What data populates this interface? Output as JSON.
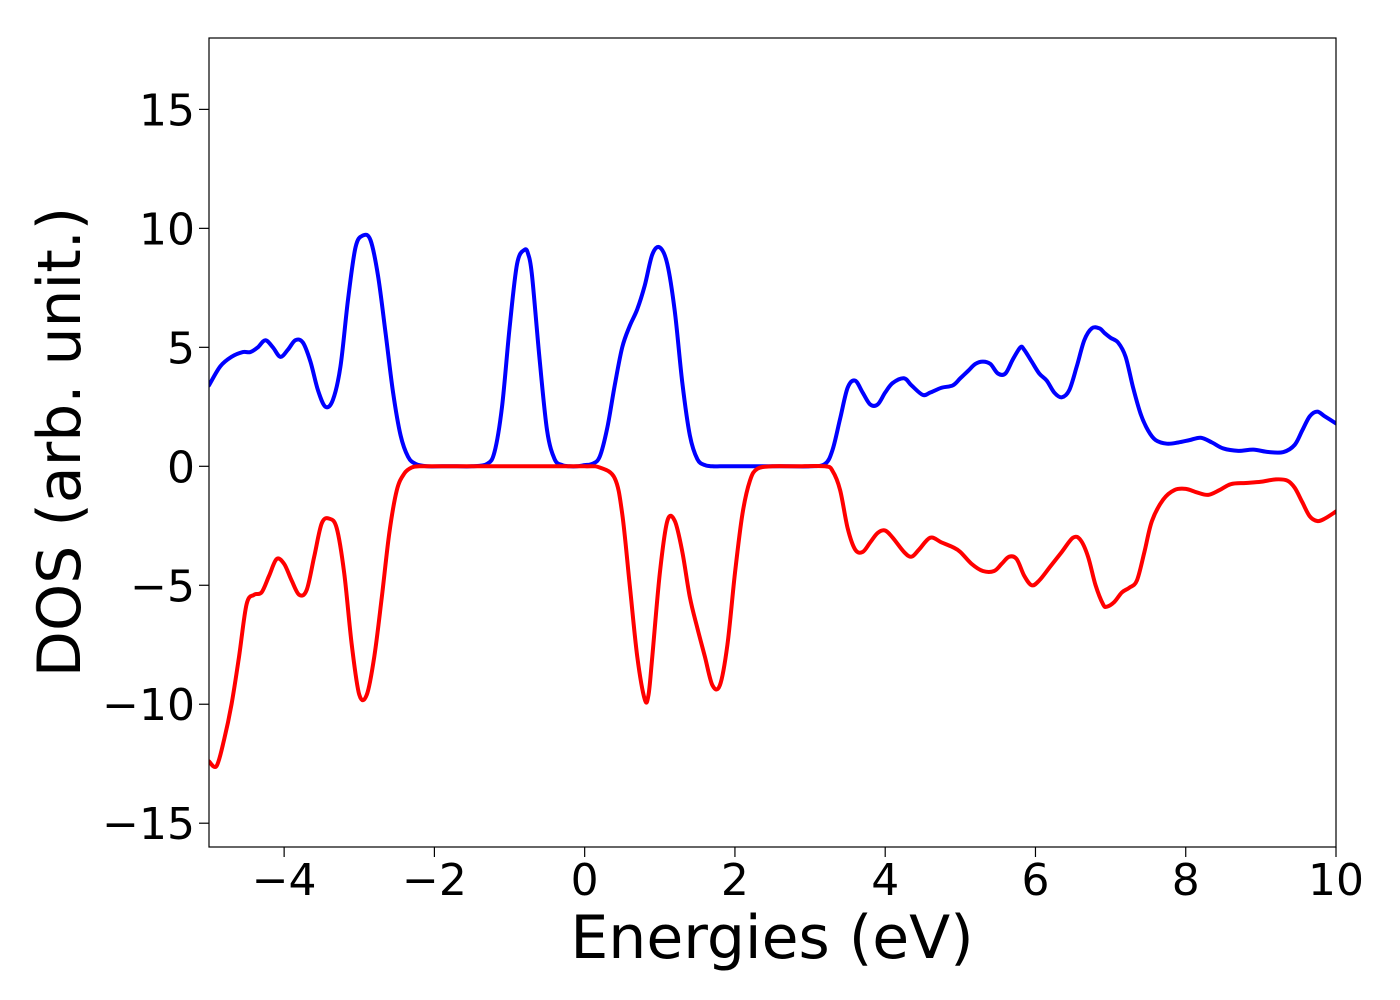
{
  "chart_data": {
    "type": "line",
    "xlabel": "Energies (eV)",
    "ylabel": "DOS (arb. unit.)",
    "xlim": [
      -5,
      10
    ],
    "ylim": [
      -16,
      18
    ],
    "xticks": [
      -4,
      -2,
      0,
      2,
      4,
      6,
      8,
      10
    ],
    "xtick_labels": [
      "−4",
      "−2",
      "0",
      "2",
      "4",
      "6",
      "8",
      "10"
    ],
    "yticks": [
      -15,
      -10,
      -5,
      0,
      5,
      10,
      15
    ],
    "ytick_labels": [
      "−15",
      "−10",
      "−5",
      "0",
      "5",
      "10",
      "15"
    ],
    "grid": false,
    "series": [
      {
        "color": "#0000ff",
        "x": [
          -5.0,
          -4.85,
          -4.7,
          -4.55,
          -4.45,
          -4.35,
          -4.25,
          -4.15,
          -4.05,
          -3.95,
          -3.85,
          -3.75,
          -3.65,
          -3.55,
          -3.45,
          -3.35,
          -3.25,
          -3.15,
          -3.05,
          -2.95,
          -2.85,
          -2.75,
          -2.65,
          -2.55,
          -2.45,
          -2.35,
          -2.25,
          -2.1,
          -1.9,
          -1.7,
          -1.5,
          -1.3,
          -1.2,
          -1.1,
          -1.0,
          -0.9,
          -0.8,
          -0.75,
          -0.7,
          -0.6,
          -0.5,
          -0.4,
          -0.3,
          -0.2,
          -0.1,
          0.0,
          0.1,
          0.2,
          0.3,
          0.4,
          0.5,
          0.6,
          0.7,
          0.8,
          0.9,
          1.0,
          1.1,
          1.2,
          1.3,
          1.4,
          1.5,
          1.6,
          1.7,
          1.8,
          1.9,
          2.1,
          2.4,
          2.7,
          3.0,
          3.2,
          3.3,
          3.4,
          3.5,
          3.6,
          3.7,
          3.8,
          3.9,
          4.0,
          4.1,
          4.25,
          4.35,
          4.5,
          4.6,
          4.75,
          4.9,
          5.0,
          5.1,
          5.2,
          5.3,
          5.4,
          5.5,
          5.6,
          5.7,
          5.8,
          5.85,
          5.95,
          6.05,
          6.15,
          6.25,
          6.35,
          6.45,
          6.55,
          6.65,
          6.75,
          6.85,
          6.92,
          7.0,
          7.1,
          7.2,
          7.3,
          7.4,
          7.5,
          7.6,
          7.75,
          7.9,
          8.05,
          8.2,
          8.35,
          8.5,
          8.7,
          8.9,
          9.1,
          9.3,
          9.45,
          9.55,
          9.65,
          9.75,
          9.85,
          10.0
        ],
        "y": [
          3.4,
          4.2,
          4.6,
          4.8,
          4.8,
          5.0,
          5.3,
          5.0,
          4.6,
          4.9,
          5.3,
          5.2,
          4.4,
          3.2,
          2.5,
          2.8,
          4.2,
          7.0,
          9.2,
          9.7,
          9.5,
          8.0,
          5.6,
          3.1,
          1.3,
          0.4,
          0.1,
          0.0,
          0.0,
          0.0,
          0.0,
          0.1,
          0.6,
          2.5,
          5.8,
          8.5,
          9.1,
          8.9,
          8.0,
          4.5,
          1.5,
          0.3,
          0.05,
          0.0,
          0.0,
          0.05,
          0.1,
          0.4,
          1.6,
          3.4,
          5.0,
          5.9,
          6.6,
          7.6,
          8.9,
          9.2,
          8.5,
          6.5,
          3.5,
          1.3,
          0.3,
          0.05,
          0.0,
          0.0,
          0.0,
          0.0,
          0.0,
          0.0,
          0.0,
          0.1,
          0.7,
          2.0,
          3.3,
          3.6,
          3.1,
          2.6,
          2.6,
          3.1,
          3.5,
          3.7,
          3.4,
          3.0,
          3.1,
          3.3,
          3.4,
          3.7,
          4.0,
          4.3,
          4.4,
          4.3,
          3.9,
          3.9,
          4.5,
          5.0,
          4.9,
          4.4,
          3.9,
          3.6,
          3.1,
          2.9,
          3.2,
          4.2,
          5.3,
          5.8,
          5.8,
          5.6,
          5.4,
          5.2,
          4.6,
          3.3,
          2.2,
          1.5,
          1.1,
          0.95,
          1.0,
          1.1,
          1.2,
          1.0,
          0.75,
          0.65,
          0.7,
          0.6,
          0.6,
          0.9,
          1.5,
          2.1,
          2.3,
          2.1,
          1.8
        ],
        "name": ""
      },
      {
        "color": "#ff0000",
        "x": [
          -5.0,
          -4.9,
          -4.8,
          -4.7,
          -4.6,
          -4.5,
          -4.4,
          -4.3,
          -4.2,
          -4.1,
          -4.0,
          -3.9,
          -3.8,
          -3.7,
          -3.6,
          -3.5,
          -3.4,
          -3.3,
          -3.2,
          -3.1,
          -3.0,
          -2.9,
          -2.8,
          -2.7,
          -2.6,
          -2.5,
          -2.4,
          -2.3,
          -2.2,
          -2.1,
          -2.0,
          -1.9,
          -1.7,
          -1.5,
          -1.0,
          -0.5,
          0.0,
          0.2,
          0.4,
          0.5,
          0.6,
          0.7,
          0.8,
          0.85,
          0.9,
          1.0,
          1.1,
          1.2,
          1.3,
          1.4,
          1.5,
          1.6,
          1.7,
          1.8,
          1.9,
          2.0,
          2.1,
          2.2,
          2.3,
          2.5,
          2.8,
          3.2,
          3.3,
          3.4,
          3.5,
          3.6,
          3.7,
          3.8,
          3.9,
          4.0,
          4.1,
          4.25,
          4.35,
          4.45,
          4.6,
          4.75,
          4.9,
          5.0,
          5.15,
          5.3,
          5.45,
          5.55,
          5.65,
          5.75,
          5.85,
          5.95,
          6.05,
          6.2,
          6.35,
          6.5,
          6.6,
          6.7,
          6.8,
          6.9,
          6.95,
          7.05,
          7.15,
          7.25,
          7.35,
          7.45,
          7.55,
          7.7,
          7.85,
          8.0,
          8.15,
          8.3,
          8.45,
          8.6,
          8.8,
          9.0,
          9.2,
          9.35,
          9.45,
          9.55,
          9.65,
          9.75,
          9.85,
          10.0
        ],
        "y": [
          -12.4,
          -12.6,
          -11.5,
          -10.0,
          -8.0,
          -5.8,
          -5.4,
          -5.3,
          -4.6,
          -3.9,
          -4.1,
          -4.8,
          -5.4,
          -5.2,
          -3.8,
          -2.4,
          -2.2,
          -2.6,
          -4.5,
          -7.5,
          -9.6,
          -9.6,
          -8.0,
          -5.5,
          -2.8,
          -1.0,
          -0.3,
          -0.05,
          0.0,
          0.0,
          0.0,
          0.0,
          0.0,
          0.0,
          0.0,
          0.0,
          0.0,
          -0.05,
          -0.5,
          -2.0,
          -5.0,
          -8.0,
          -9.8,
          -9.6,
          -8.0,
          -4.5,
          -2.3,
          -2.3,
          -3.6,
          -5.5,
          -6.8,
          -8.0,
          -9.2,
          -9.2,
          -7.5,
          -4.5,
          -2.0,
          -0.6,
          -0.1,
          0.0,
          0.0,
          0.0,
          -0.2,
          -1.0,
          -2.6,
          -3.5,
          -3.6,
          -3.2,
          -2.8,
          -2.7,
          -3.0,
          -3.6,
          -3.8,
          -3.5,
          -3.0,
          -3.2,
          -3.4,
          -3.6,
          -4.1,
          -4.4,
          -4.4,
          -4.1,
          -3.8,
          -3.9,
          -4.6,
          -5.0,
          -4.8,
          -4.2,
          -3.6,
          -3.0,
          -3.1,
          -3.8,
          -5.0,
          -5.8,
          -5.9,
          -5.7,
          -5.3,
          -5.1,
          -4.8,
          -3.6,
          -2.3,
          -1.4,
          -1.0,
          -0.95,
          -1.1,
          -1.2,
          -1.0,
          -0.75,
          -0.7,
          -0.65,
          -0.55,
          -0.6,
          -0.9,
          -1.5,
          -2.1,
          -2.3,
          -2.2,
          -1.9
        ],
        "name": ""
      }
    ]
  }
}
